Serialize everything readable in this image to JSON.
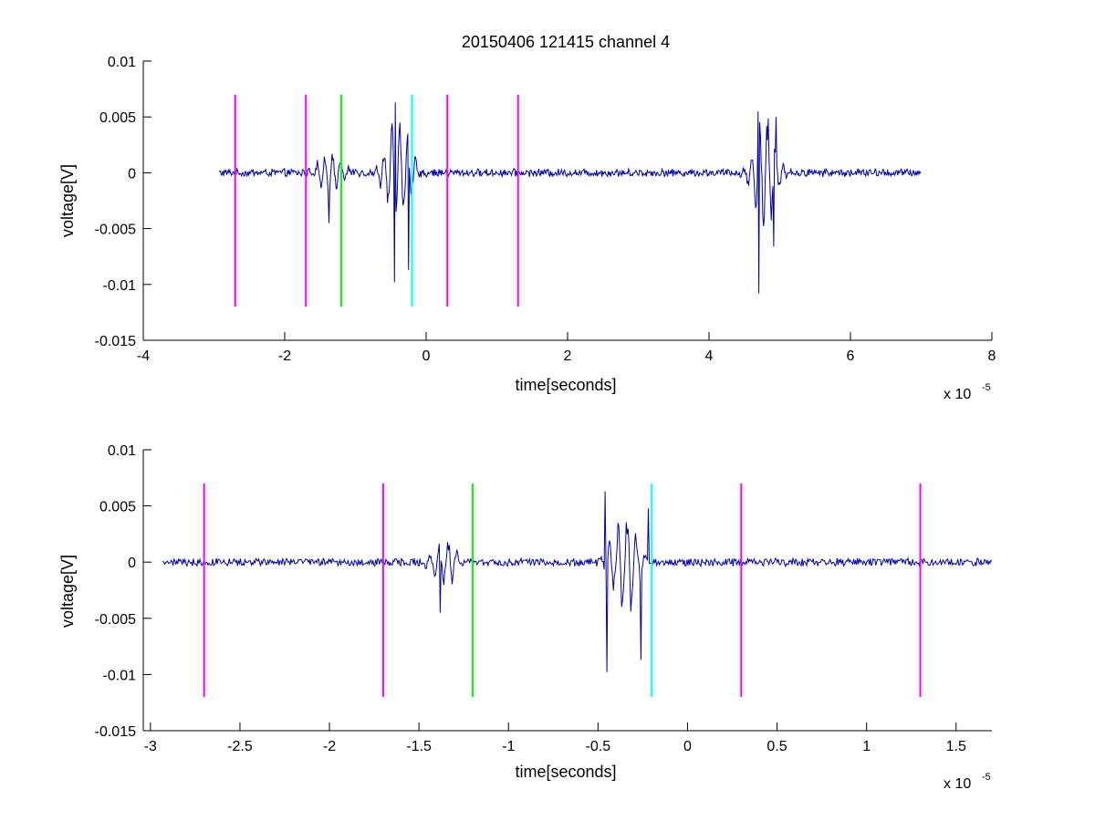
{
  "chart_data": [
    {
      "type": "line",
      "title": "20150406 121415 channel 4",
      "xlabel": "time[seconds]",
      "ylabel": "voltage[V]",
      "x_exponent_label": "x 10",
      "x_exponent_power": "-5",
      "xlim": [
        -4,
        8
      ],
      "ylim": [
        -0.015,
        0.01
      ],
      "x_ticks": [
        -4,
        -2,
        0,
        2,
        4,
        6,
        8
      ],
      "x_tick_labels": [
        "-4",
        "-2",
        "0",
        "2",
        "4",
        "6",
        "8"
      ],
      "y_ticks": [
        -0.015,
        -0.01,
        -0.005,
        0,
        0.005,
        0.01
      ],
      "y_tick_labels": [
        "-0.015",
        "-0.01",
        "-0.005",
        "0",
        "0.005",
        "0.01"
      ],
      "grid": false,
      "signal": {
        "color": "#0000aa",
        "x_start": -2.93,
        "x_end": 7.0,
        "baseline_noise": 0.00035,
        "bursts": [
          {
            "center": -1.35,
            "width": 0.3,
            "amp": 0.0035,
            "freq": 9
          },
          {
            "center": -0.4,
            "width": 0.3,
            "amp": 0.009,
            "freq": 9
          },
          {
            "center": 4.8,
            "width": 0.28,
            "amp": 0.009,
            "freq": 9
          }
        ],
        "extremes": [
          {
            "x": -1.37,
            "y": -0.0045
          },
          {
            "x": -0.44,
            "y": 0.0063
          },
          {
            "x": -0.45,
            "y": -0.0098
          },
          {
            "x": -0.25,
            "y": -0.0087
          },
          {
            "x": 4.69,
            "y": 0.0055
          },
          {
            "x": 4.7,
            "y": -0.0108
          },
          {
            "x": 4.91,
            "y": -0.0066
          },
          {
            "x": 4.95,
            "y": 0.005
          }
        ]
      },
      "markers": [
        {
          "x": -2.7,
          "color": "#ff00ff",
          "y_range": [
            -0.012,
            0.007
          ]
        },
        {
          "x": -1.7,
          "color": "#ff00ff",
          "y_range": [
            -0.012,
            0.007
          ]
        },
        {
          "x": -1.2,
          "color": "#00ff00",
          "y_range": [
            -0.012,
            0.007
          ]
        },
        {
          "x": -0.2,
          "color": "#00ffff",
          "y_range": [
            -0.012,
            0.007
          ]
        },
        {
          "x": 0.3,
          "color": "#ff00ff",
          "y_range": [
            -0.012,
            0.007
          ]
        },
        {
          "x": 1.3,
          "color": "#ff00ff",
          "y_range": [
            -0.012,
            0.007
          ]
        }
      ]
    },
    {
      "type": "line",
      "title": "",
      "xlabel": "time[seconds]",
      "ylabel": "voltage[V]",
      "x_exponent_label": "x 10",
      "x_exponent_power": "-5",
      "xlim": [
        -3.04,
        1.7
      ],
      "ylim": [
        -0.015,
        0.01
      ],
      "x_ticks": [
        -3,
        -2.5,
        -2,
        -1.5,
        -1,
        -0.5,
        0,
        0.5,
        1,
        1.5
      ],
      "x_tick_labels": [
        "-3",
        "-2.5",
        "-2",
        "-1.5",
        "-1",
        "-0.5",
        "0",
        "0.5",
        "1",
        "1.5"
      ],
      "y_ticks": [
        -0.015,
        -0.01,
        -0.005,
        0,
        0.005,
        0.01
      ],
      "y_tick_labels": [
        "-0.015",
        "-0.01",
        "-0.005",
        "0",
        "0.005",
        "0.01"
      ],
      "grid": false,
      "signal": {
        "color": "#0000aa",
        "x_start": -2.93,
        "x_end": 1.7,
        "baseline_noise": 0.00035,
        "bursts": [
          {
            "center": -1.35,
            "width": 0.12,
            "amp": 0.0035,
            "freq": 20
          },
          {
            "center": -0.35,
            "width": 0.12,
            "amp": 0.009,
            "freq": 20
          }
        ],
        "extremes": [
          {
            "x": -1.38,
            "y": -0.0045
          },
          {
            "x": -0.46,
            "y": 0.0063
          },
          {
            "x": -0.45,
            "y": -0.0098
          },
          {
            "x": -0.26,
            "y": -0.0087
          },
          {
            "x": -0.22,
            "y": 0.0048
          }
        ]
      },
      "markers": [
        {
          "x": -2.7,
          "color": "#ff00ff",
          "y_range": [
            -0.012,
            0.007
          ]
        },
        {
          "x": -1.7,
          "color": "#ff00ff",
          "y_range": [
            -0.012,
            0.007
          ]
        },
        {
          "x": -1.2,
          "color": "#00ff00",
          "y_range": [
            -0.012,
            0.007
          ]
        },
        {
          "x": -0.2,
          "color": "#00ffff",
          "y_range": [
            -0.012,
            0.007
          ]
        },
        {
          "x": 0.3,
          "color": "#ff00ff",
          "y_range": [
            -0.012,
            0.007
          ]
        },
        {
          "x": 1.3,
          "color": "#ff00ff",
          "y_range": [
            -0.012,
            0.007
          ]
        }
      ]
    }
  ]
}
